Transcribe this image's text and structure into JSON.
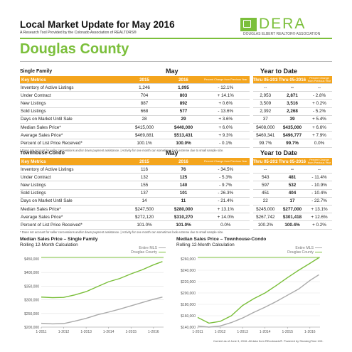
{
  "header": {
    "title": "Local Market Update for May 2016",
    "subtitle": "A Research Tool Provided by the Colorado Association of REALTORS®",
    "brand_word": "DERA",
    "brand_tagline": "DOUGLAS ELBERT REALTOR® ASSOCIATION",
    "county": "Douglas County"
  },
  "colors": {
    "accent_green": "#7bbf3b",
    "header_orange": "#f4a51d",
    "douglas_line": "#7bbf3b",
    "entire_line": "#aaaaaa"
  },
  "single_family": {
    "title": "Single Family",
    "month_label": "May",
    "ytd_label": "Year to Date",
    "columns": [
      "Key Metrics",
      "2015",
      "2016",
      "Percent Change from Previous Year",
      "Thru 05-2015",
      "Thru 05-2016",
      "Percent Change from Previous Year"
    ],
    "rows": [
      [
        "Inventory of Active Listings",
        "1,246",
        "1,095",
        "- 12.1%",
        "--",
        "--",
        "--"
      ],
      [
        "Under Contract",
        "704",
        "803",
        "+ 14.1%",
        "2,953",
        "2,871",
        "- 2.8%"
      ],
      [
        "New Listings",
        "887",
        "892",
        "+ 0.6%",
        "3,509",
        "3,516",
        "+ 0.2%"
      ],
      [
        "Sold Listings",
        "668",
        "577",
        "- 13.6%",
        "2,392",
        "2,268",
        "- 5.2%"
      ],
      [
        "Days on Market Until Sale",
        "28",
        "29",
        "+ 3.6%",
        "37",
        "39",
        "+ 5.4%"
      ],
      [
        "Median Sales Price*",
        "$415,000",
        "$440,000",
        "+ 6.0%",
        "$408,000",
        "$435,000",
        "+ 6.6%"
      ],
      [
        "Average Sales Price*",
        "$469,881",
        "$513,431",
        "+ 9.3%",
        "$460,341",
        "$496,777",
        "+ 7.9%"
      ],
      [
        "Percent of List Price Received*",
        "100.1%",
        "100.0%",
        "- 0.1%",
        "99.7%",
        "99.7%",
        "0.0%"
      ]
    ],
    "footnote": "* Does not account for seller concessions and/or down payment assistance. | Activity for one month can sometimes look extreme due to small sample size."
  },
  "townhouse": {
    "title": "Townhouse-Condo",
    "month_label": "May",
    "ytd_label": "Year to Date",
    "columns": [
      "Key Metrics",
      "2015",
      "2016",
      "Percent Change from Previous Year",
      "Thru 05-2015",
      "Thru 05-2016",
      "Percent Change from Previous Year"
    ],
    "rows": [
      [
        "Inventory of Active Listings",
        "116",
        "76",
        "- 34.5%",
        "--",
        "--",
        "--"
      ],
      [
        "Under Contract",
        "132",
        "125",
        "- 5.3%",
        "543",
        "481",
        "- 11.4%"
      ],
      [
        "New Listings",
        "155",
        "140",
        "- 9.7%",
        "597",
        "532",
        "- 10.9%"
      ],
      [
        "Sold Listings",
        "137",
        "101",
        "- 26.3%",
        "451",
        "404",
        "- 10.4%"
      ],
      [
        "Days on Market Until Sale",
        "14",
        "11",
        "- 21.4%",
        "22",
        "17",
        "- 22.7%"
      ],
      [
        "Median Sales Price*",
        "$247,500",
        "$280,000",
        "+ 13.1%",
        "$245,000",
        "$277,000",
        "+ 13.1%"
      ],
      [
        "Average Sales Price*",
        "$272,120",
        "$310,270",
        "+ 14.0%",
        "$267,742",
        "$301,418",
        "+ 12.6%"
      ],
      [
        "Percent of List Price Received*",
        "101.0%",
        "101.0%",
        "0.0%",
        "100.2%",
        "100.4%",
        "+ 0.2%"
      ]
    ],
    "footnote": "* Does not account for seller concessions and/or down payment assistance. | Activity for one month can sometimes look extreme due to small sample size."
  },
  "chart_data": [
    {
      "type": "line",
      "title": "Median Sales Price – Single Family",
      "subtitle": "Rolling 12-Month Calculation",
      "x_ticks": [
        "1-2011",
        "1-2012",
        "1-2013",
        "1-2014",
        "1-2015",
        "1-2016"
      ],
      "y_ticks": [
        "$200,000",
        "$250,000",
        "$300,000",
        "$350,000",
        "$400,000",
        "$450,000"
      ],
      "ylim": [
        200000,
        450000
      ],
      "x": [
        2011.0,
        2011.5,
        2012.0,
        2012.5,
        2013.0,
        2013.5,
        2014.0,
        2014.5,
        2015.0,
        2015.5,
        2016.0,
        2016.4
      ],
      "series": [
        {
          "name": "Entire MLS",
          "values": [
            214000,
            212000,
            213000,
            222000,
            232000,
            245000,
            255000,
            266000,
            278000,
            290000,
            302000,
            310000
          ]
        },
        {
          "name": "Douglas County",
          "values": [
            310000,
            308000,
            309000,
            318000,
            330000,
            348000,
            366000,
            378000,
            395000,
            410000,
            428000,
            440000
          ]
        }
      ],
      "grid": true,
      "legend": "top-right"
    },
    {
      "type": "line",
      "title": "Median Sales Price – Townhouse-Condo",
      "subtitle": "Rolling 12-Month Calculation",
      "x_ticks": [
        "1-2011",
        "1-2012",
        "1-2013",
        "1-2014",
        "1-2015",
        "1-2016"
      ],
      "y_ticks": [
        "$140,000",
        "$160,000",
        "$180,000",
        "$200,000",
        "$220,000",
        "$240,000",
        "$260,000"
      ],
      "ylim": [
        140000,
        260000
      ],
      "x": [
        2011.0,
        2011.5,
        2012.0,
        2012.5,
        2013.0,
        2013.5,
        2014.0,
        2014.5,
        2015.0,
        2015.5,
        2016.0,
        2016.4
      ],
      "series": [
        {
          "name": "Entire MLS",
          "values": [
            142000,
            140000,
            142000,
            148000,
            156000,
            166000,
            175000,
            185000,
            196000,
            207000,
            222000,
            232000
          ]
        },
        {
          "name": "Douglas County",
          "values": [
            157000,
            147000,
            150000,
            160000,
            178000,
            190000,
            200000,
            213000,
            227000,
            240000,
            252000,
            262000
          ]
        }
      ],
      "grid": true,
      "legend": "top-right"
    }
  ],
  "bottom_note": "Current as of June 3, 2016. All data from REcolorado®. Powered by ShowingTime 10K."
}
